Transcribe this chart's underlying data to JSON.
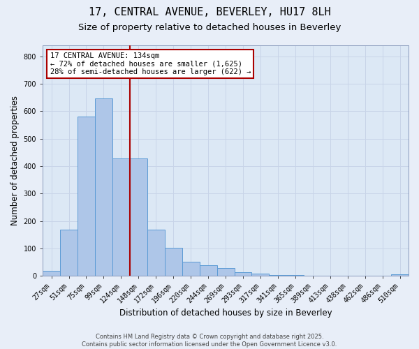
{
  "title_line1": "17, CENTRAL AVENUE, BEVERLEY, HU17 8LH",
  "title_line2": "Size of property relative to detached houses in Beverley",
  "xlabel": "Distribution of detached houses by size in Beverley",
  "ylabel": "Number of detached properties",
  "categories": [
    "27sqm",
    "51sqm",
    "75sqm",
    "99sqm",
    "124sqm",
    "148sqm",
    "172sqm",
    "196sqm",
    "220sqm",
    "244sqm",
    "269sqm",
    "293sqm",
    "317sqm",
    "341sqm",
    "365sqm",
    "389sqm",
    "413sqm",
    "438sqm",
    "462sqm",
    "486sqm",
    "510sqm"
  ],
  "values": [
    18,
    168,
    580,
    648,
    428,
    428,
    170,
    103,
    53,
    38,
    30,
    13,
    8,
    3,
    3,
    0,
    0,
    0,
    0,
    0,
    5
  ],
  "bar_color": "#aec6e8",
  "bar_edge_color": "#5b9bd5",
  "vline_x_index": 4.5,
  "annotation_text_line1": "17 CENTRAL AVENUE: 134sqm",
  "annotation_text_line2": "← 72% of detached houses are smaller (1,625)",
  "annotation_text_line3": "28% of semi-detached houses are larger (622) →",
  "annotation_box_color": "#ffffff",
  "annotation_box_edge_color": "#aa0000",
  "vline_color": "#aa0000",
  "ylim": [
    0,
    840
  ],
  "yticks": [
    0,
    100,
    200,
    300,
    400,
    500,
    600,
    700,
    800
  ],
  "grid_color": "#c8d4e8",
  "bg_color": "#dce8f5",
  "fig_bg_color": "#e8eef8",
  "footer_line1": "Contains HM Land Registry data © Crown copyright and database right 2025.",
  "footer_line2": "Contains public sector information licensed under the Open Government Licence v3.0.",
  "title_fontsize": 11,
  "subtitle_fontsize": 9.5,
  "axis_label_fontsize": 8.5,
  "tick_fontsize": 7,
  "annotation_fontsize": 7.5,
  "footer_fontsize": 6
}
